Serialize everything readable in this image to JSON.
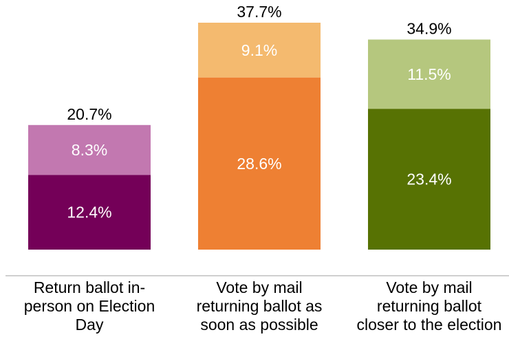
{
  "chart_data": {
    "type": "bar",
    "stacked": true,
    "categories": [
      [
        "Return ballot in-",
        "person on Election",
        "Day"
      ],
      [
        "Vote by mail",
        "returning ballot as",
        "soon as possible"
      ],
      [
        "Vote by mail",
        "returning ballot",
        "closer to the election"
      ]
    ],
    "bars": [
      {
        "total": 20.7,
        "total_label": "20.7%",
        "segments": [
          {
            "value": 12.4,
            "label": "12.4%",
            "color": "#740058"
          },
          {
            "value": 8.3,
            "label": "8.3%",
            "color": "#c278b0"
          }
        ]
      },
      {
        "total": 37.7,
        "total_label": "37.7%",
        "segments": [
          {
            "value": 28.6,
            "label": "28.6%",
            "color": "#ee8033"
          },
          {
            "value": 9.1,
            "label": "9.1%",
            "color": "#f4ba6f"
          }
        ]
      },
      {
        "total": 34.9,
        "total_label": "34.9%",
        "segments": [
          {
            "value": 23.4,
            "label": "23.4%",
            "color": "#577203"
          },
          {
            "value": 11.5,
            "label": "11.5%",
            "color": "#b5c77e"
          }
        ]
      }
    ],
    "ylim": [
      0,
      37.7
    ],
    "axis_color": "#bfbfbf",
    "grid": false,
    "legend": "none"
  }
}
